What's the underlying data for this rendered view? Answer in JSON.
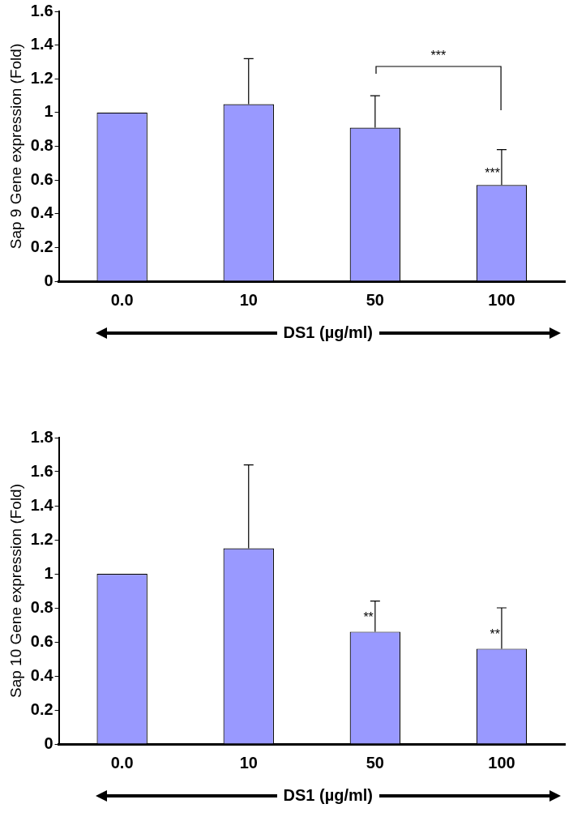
{
  "chart_data": [
    {
      "type": "bar",
      "ylabel": "Sap 9 Gene expression (Fold)",
      "xlabel": "DS1 (µg/ml)",
      "categories": [
        "0.0",
        "10",
        "50",
        "100"
      ],
      "values": [
        1.0,
        1.05,
        0.91,
        0.57
      ],
      "color": "#9999ff",
      "errors": [
        null,
        [
          1.05,
          1.32
        ],
        [
          0.91,
          1.1
        ],
        [
          0.57,
          0.78
        ]
      ],
      "ylim": [
        0,
        1.6
      ],
      "yticks": [
        0,
        0.2,
        0.4,
        0.6,
        0.8,
        1,
        1.2,
        1.4,
        1.6
      ],
      "grid": false,
      "annotations": [
        "***",
        {
          "text": "***",
          "x": "100",
          "y": 0.6
        }
      ]
    },
    {
      "type": "bar",
      "ylabel": "Sap 10 Gene expression (Fold)",
      "xlabel": "DS1 (µg/ml)",
      "categories": [
        "0.0",
        "10",
        "50",
        "100"
      ],
      "values": [
        1.0,
        1.15,
        0.66,
        0.56
      ],
      "color": "#9999ff",
      "errors": [
        null,
        [
          1.15,
          1.64
        ],
        [
          0.66,
          0.84
        ],
        [
          0.56,
          0.8
        ]
      ],
      "ylim": [
        0,
        1.8
      ],
      "yticks": [
        0,
        0.2,
        0.4,
        0.6,
        0.8,
        1,
        1.2,
        1.4,
        1.6,
        1.8
      ],
      "grid": false,
      "annotations": [
        {
          "text": "**",
          "x": "50",
          "y": 0.7
        },
        {
          "text": "**",
          "x": "100",
          "y": 0.6
        }
      ]
    }
  ]
}
